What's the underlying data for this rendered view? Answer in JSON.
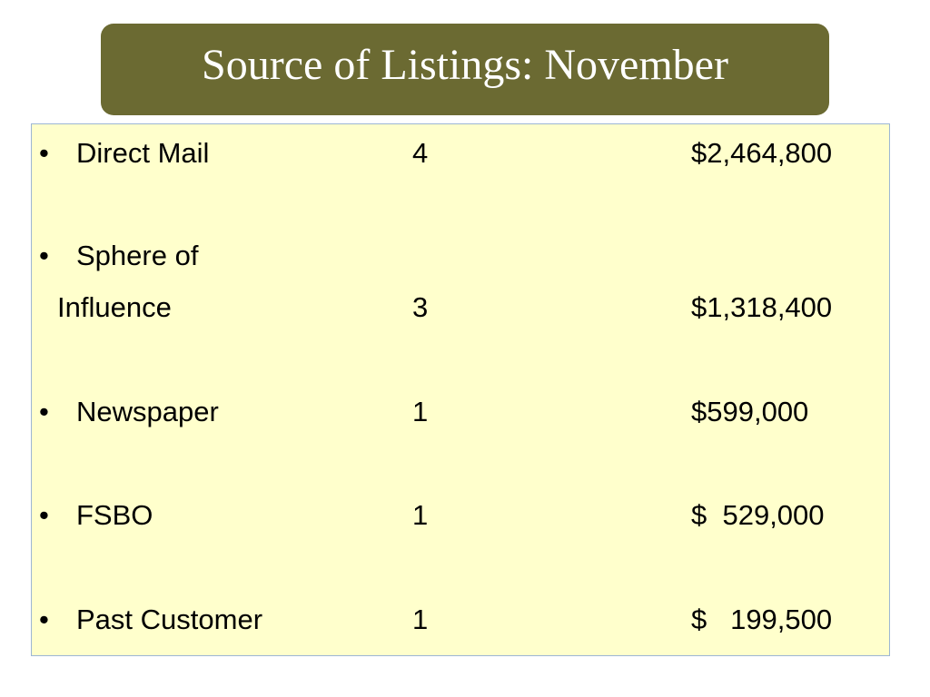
{
  "title": "Source of Listings: November",
  "listings": [
    {
      "bullet": "•",
      "label": "Direct Mail",
      "count": "4",
      "amount": "$2,464,800"
    },
    {
      "bullet": "•",
      "label": "Sphere of",
      "count": "",
      "amount": ""
    },
    {
      "bullet": "",
      "label": "Influence",
      "count": "3",
      "amount": "$1,318,400"
    },
    {
      "bullet": "•",
      "label": "Newspaper",
      "count": "1",
      "amount": "$599,000"
    },
    {
      "bullet": "•",
      "label": "FSBO",
      "count": "1",
      "amount": "$  529,000"
    },
    {
      "bullet": "•",
      "label": "Past Customer",
      "count": "1",
      "amount": "$   199,500"
    }
  ]
}
